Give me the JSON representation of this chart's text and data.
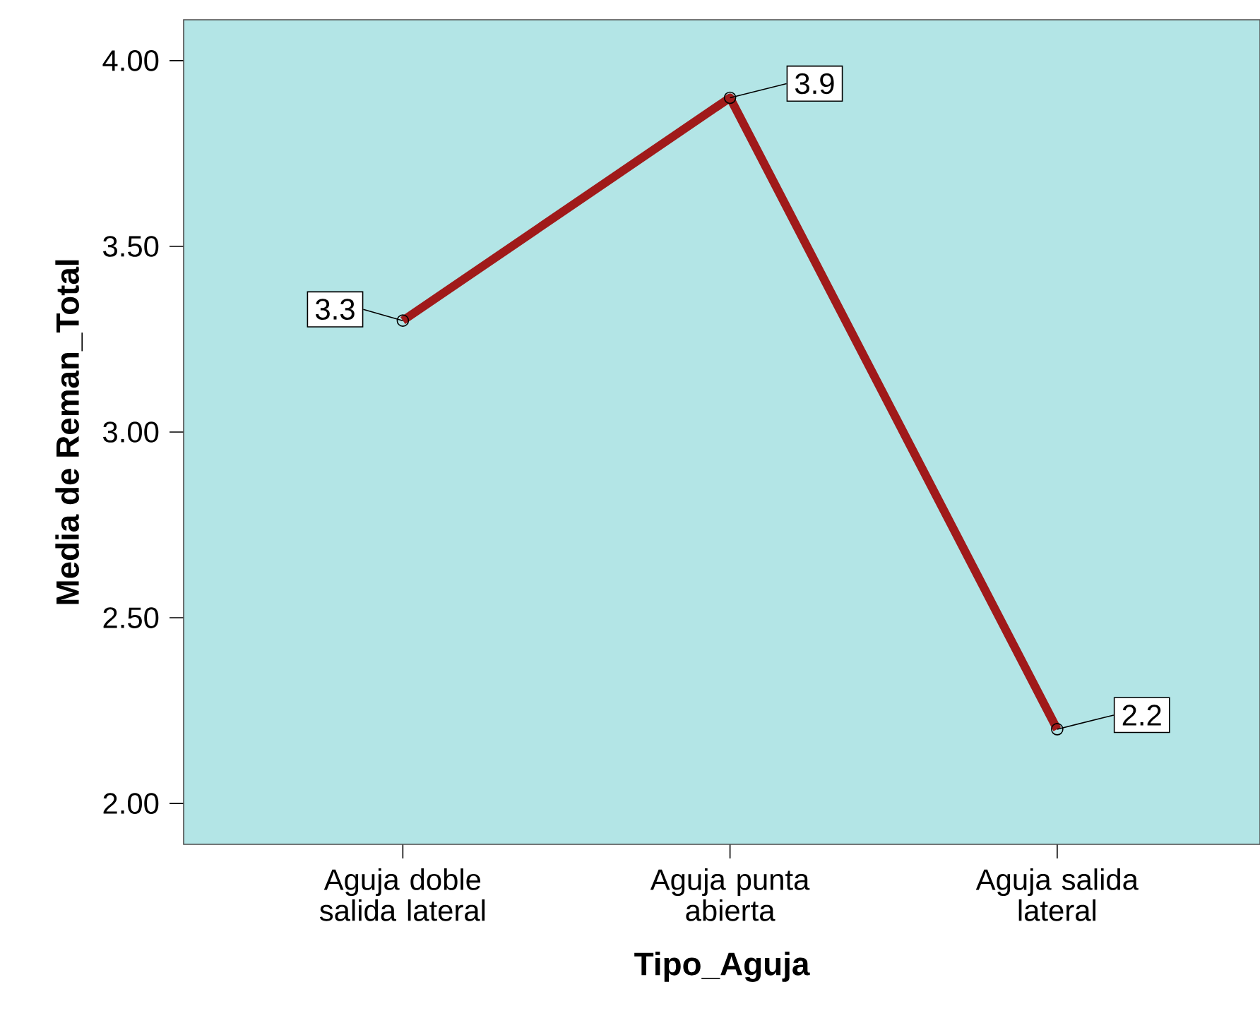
{
  "chart_data": {
    "type": "line",
    "xlabel": "Tipo_Aguja",
    "ylabel": "Media de Reman_Total",
    "categories": [
      "Aguja doble salida lateral",
      "Aguja punta abierta",
      "Aguja  salida lateral"
    ],
    "values": [
      3.3,
      3.9,
      2.2
    ],
    "color": "#a01a1a",
    "marker": "circle",
    "line_style": "solid",
    "data_labels": true,
    "ylim": [
      1.89,
      4.11
    ],
    "yticks": [
      {
        "value": 2,
        "label": "2.00"
      },
      {
        "value": 2.5,
        "label": "2.50"
      },
      {
        "value": 3,
        "label": "3.00"
      },
      {
        "value": 3.5,
        "label": "3.50"
      },
      {
        "value": 4,
        "label": "4.00"
      }
    ],
    "grid": false
  }
}
